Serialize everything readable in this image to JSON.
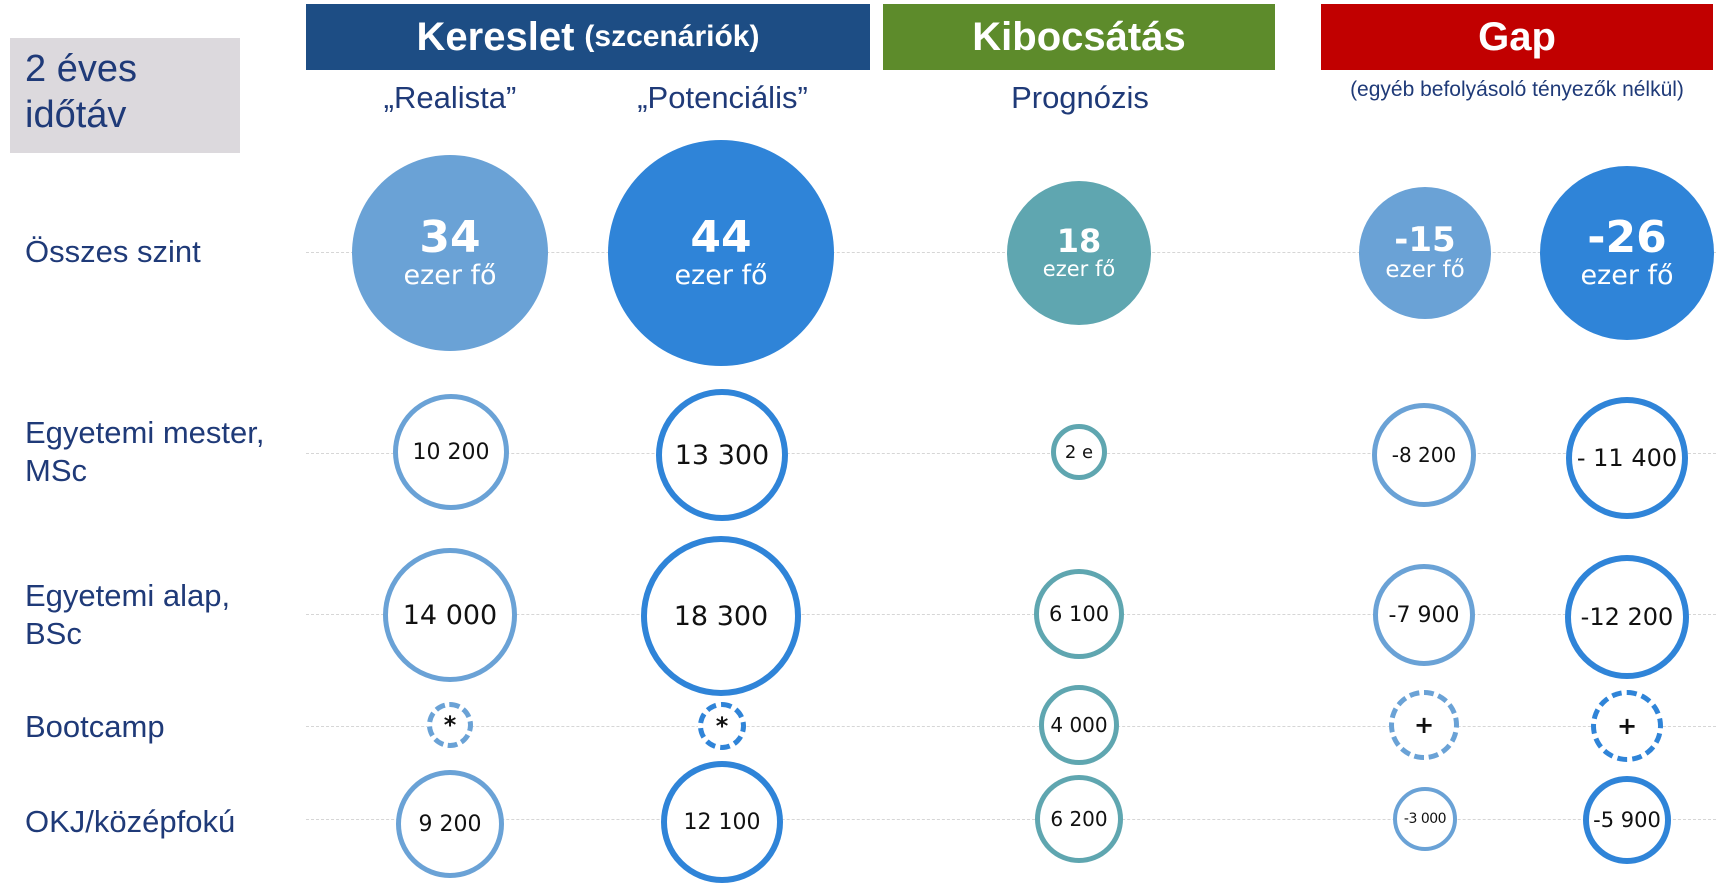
{
  "timeframe": {
    "line1": "2 éves",
    "line2": "időtáv"
  },
  "headers": {
    "demand": {
      "title": "Kereslet",
      "subtitle": "(szcenáriók)"
    },
    "supply": {
      "title": "Kibocsátás"
    },
    "gap": {
      "title": "Gap",
      "note": "(egyéb befolyásoló tényezők nélkül)"
    }
  },
  "columns": {
    "realistic": "„Realista”",
    "potential": "„Potenciális”",
    "forecast": "Prognózis"
  },
  "rows": {
    "total": {
      "line1": "Összes szint"
    },
    "msc": {
      "line1": "Egyetemi mester,",
      "line2": "MSc"
    },
    "bsc": {
      "line1": "Egyetemi alap,",
      "line2": "BSc"
    },
    "bootcamp": {
      "line1": "Bootcamp"
    },
    "okj": {
      "line1": "OKJ/középfokú"
    }
  },
  "values": {
    "total": {
      "realistic": "34",
      "potential": "44",
      "forecast": "18",
      "gap_realistic": "-15",
      "gap_potential": "-26",
      "unit": "ezer fő"
    },
    "msc": {
      "realistic": "10 200",
      "potential": "13 300",
      "forecast": "2 e",
      "gap_realistic": "-8 200",
      "gap_potential": "- 11 400"
    },
    "bsc": {
      "realistic": "14 000",
      "potential": "18 300",
      "forecast": "6 100",
      "gap_realistic": "-7 900",
      "gap_potential": "-12 200"
    },
    "bootcamp": {
      "realistic": "*",
      "potential": "*",
      "forecast": "4 000",
      "gap_realistic": "+",
      "gap_potential": "+"
    },
    "okj": {
      "realistic": "9 200",
      "potential": "12 100",
      "forecast": "6 200",
      "gap_realistic": "-3 000",
      "gap_potential": "-5 900"
    }
  },
  "colors": {
    "demand_header": "#1d4d84",
    "supply_header": "#5d8b2b",
    "gap_header": "#c10000",
    "light_blue": "#6aa2d6",
    "bright_blue": "#2f84d8",
    "teal": "#5fa6b0",
    "label_text": "#1f3a78"
  }
}
